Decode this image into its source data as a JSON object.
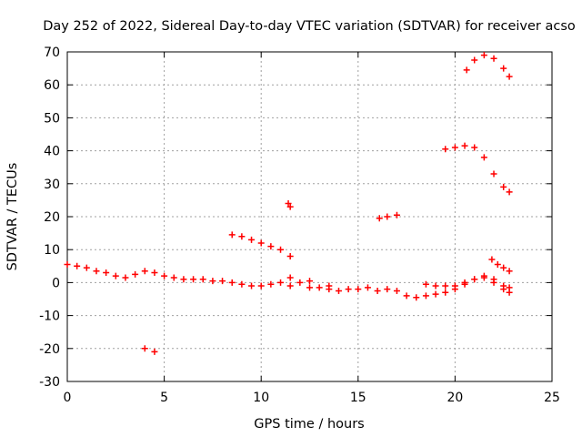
{
  "chart_data": {
    "type": "scatter",
    "title": "Day 252 of 2022, Sidereal Day-to-day VTEC variation (SDTVAR) for receiver acso",
    "xlabel": "GPS time / hours",
    "ylabel": "SDTVAR / TECUs",
    "xlim": [
      0,
      25
    ],
    "ylim": [
      -30,
      70
    ],
    "xticks": [
      0,
      5,
      10,
      15,
      20,
      25
    ],
    "yticks": [
      -30,
      -20,
      -10,
      0,
      10,
      20,
      30,
      40,
      50,
      60,
      70
    ],
    "grid": true,
    "marker": "+",
    "color": "#ff0000",
    "series": [
      {
        "name": "main-trace",
        "points": [
          [
            0,
            5.5
          ],
          [
            0.5,
            5
          ],
          [
            1,
            4.5
          ],
          [
            1.5,
            3.5
          ],
          [
            2,
            3
          ],
          [
            2.5,
            2
          ],
          [
            3,
            1.5
          ],
          [
            3.5,
            2.5
          ],
          [
            4,
            3.5
          ],
          [
            4.5,
            3
          ],
          [
            5,
            2
          ],
          [
            5.5,
            1.5
          ],
          [
            6,
            1
          ],
          [
            6.5,
            1
          ],
          [
            7,
            1
          ],
          [
            7.5,
            0.5
          ],
          [
            8,
            0.5
          ],
          [
            8.5,
            0
          ],
          [
            9,
            -0.5
          ],
          [
            9.5,
            -1
          ],
          [
            10,
            -1
          ],
          [
            10.5,
            -0.5
          ],
          [
            11,
            0
          ],
          [
            11.5,
            -1
          ],
          [
            12,
            0
          ],
          [
            12.5,
            -1.5
          ],
          [
            13,
            -1.5
          ],
          [
            13.5,
            -2
          ],
          [
            14,
            -2.5
          ],
          [
            14.5,
            -2
          ],
          [
            15,
            -2
          ],
          [
            15.5,
            -1.5
          ],
          [
            16,
            -2.5
          ],
          [
            16.5,
            -2
          ],
          [
            17,
            -2.5
          ],
          [
            17.5,
            -4
          ],
          [
            18,
            -4.5
          ],
          [
            18.5,
            -4
          ],
          [
            19,
            -3.5
          ],
          [
            19.5,
            -3
          ],
          [
            20,
            -2
          ],
          [
            20.5,
            -0.5
          ],
          [
            21,
            1
          ],
          [
            21.5,
            1.5
          ],
          [
            22,
            0
          ],
          [
            22.5,
            -2
          ],
          [
            22.8,
            -3
          ]
        ]
      },
      {
        "name": "upper-flat-trace",
        "points": [
          [
            18.5,
            -0.5
          ],
          [
            19,
            -1
          ],
          [
            19.5,
            -1
          ],
          [
            20,
            -1
          ],
          [
            20.5,
            0
          ],
          [
            21,
            1
          ],
          [
            21.5,
            2
          ],
          [
            22,
            1
          ],
          [
            22.5,
            -1
          ],
          [
            22.8,
            -1.5
          ]
        ]
      },
      {
        "name": "mid-trace",
        "points": [
          [
            8.5,
            14.5
          ],
          [
            9,
            14
          ],
          [
            9.5,
            13
          ],
          [
            10,
            12
          ],
          [
            10.5,
            11
          ],
          [
            11,
            10
          ],
          [
            11.5,
            8
          ]
        ]
      },
      {
        "name": "isolated-trace",
        "points": [
          [
            11.4,
            24
          ],
          [
            11.5,
            23
          ]
        ]
      },
      {
        "name": "low-trace",
        "points": [
          [
            4,
            -20
          ],
          [
            4.5,
            -21
          ]
        ]
      },
      {
        "name": "crosses-trace",
        "points": [
          [
            11.5,
            1.5
          ],
          [
            12.5,
            0.5
          ],
          [
            13.5,
            -1
          ]
        ]
      },
      {
        "name": "segment-20",
        "points": [
          [
            16.1,
            19.5
          ],
          [
            16.5,
            20
          ],
          [
            17,
            20.5
          ]
        ]
      },
      {
        "name": "top-arc-trace",
        "points": [
          [
            20.6,
            64.5
          ],
          [
            21,
            67.5
          ],
          [
            21.5,
            69
          ],
          [
            22,
            68
          ],
          [
            22.5,
            65
          ],
          [
            22.8,
            62.5
          ]
        ]
      },
      {
        "name": "forty-trace",
        "points": [
          [
            19.5,
            40.5
          ],
          [
            20,
            41
          ],
          [
            20.5,
            41.5
          ],
          [
            21,
            41
          ],
          [
            21.5,
            38
          ],
          [
            22,
            33
          ],
          [
            22.5,
            29
          ],
          [
            22.8,
            27.5
          ]
        ]
      },
      {
        "name": "short-descending-trace",
        "points": [
          [
            21.9,
            7
          ],
          [
            22.2,
            5.5
          ],
          [
            22.5,
            4.5
          ],
          [
            22.8,
            3.5
          ]
        ]
      }
    ]
  }
}
